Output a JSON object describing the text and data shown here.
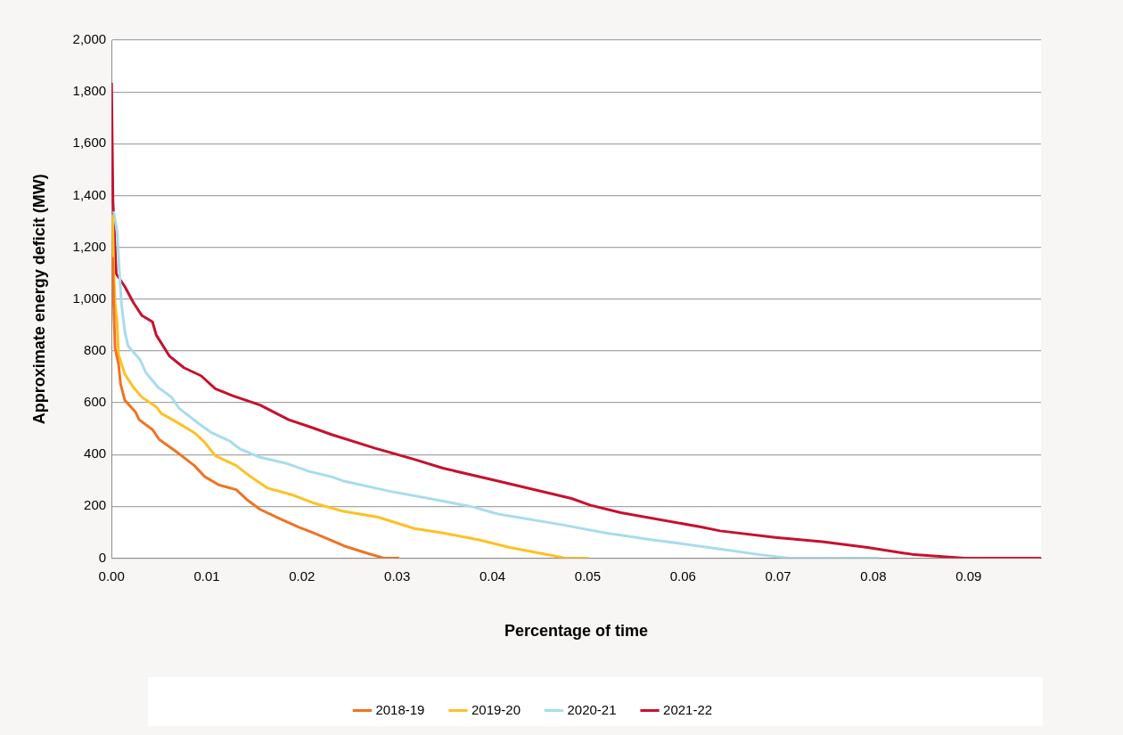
{
  "chart_data": {
    "type": "line",
    "xlabel": "Percentage of time",
    "ylabel": "Approximate energy deficit (MW)",
    "xlim": [
      0,
      0.0976
    ],
    "ylim": [
      0,
      2000
    ],
    "xticks": [
      {
        "value": 0,
        "label": "0.00"
      },
      0.01,
      0.02,
      0.03,
      0.04,
      0.05,
      0.06,
      0.07,
      0.08,
      0.09
    ],
    "yticks": [
      0,
      200,
      400,
      600,
      800,
      {
        "value": 1000,
        "label": "1,000"
      },
      {
        "value": 1200,
        "label": "1,200"
      },
      {
        "value": 1400,
        "label": "1,400"
      },
      {
        "value": 1600,
        "label": "1,600"
      },
      {
        "value": 1800,
        "label": "1,800"
      },
      {
        "value": 2000,
        "label": "2,000"
      }
    ],
    "grid": "y",
    "legend": "bottom",
    "marker": "none",
    "line_style": "solid",
    "series": [
      {
        "name": "2018-19",
        "color": "#f07323",
        "x": [
          0.00012,
          0.00022,
          0.00037,
          0.00074,
          0.00095,
          0.0014,
          0.0025,
          0.0029,
          0.0043,
          0.005,
          0.0069,
          0.0087,
          0.0098,
          0.0113,
          0.0131,
          0.0142,
          0.0156,
          0.0178,
          0.0197,
          0.0212,
          0.0231,
          0.0244,
          0.027,
          0.0286,
          0.0302
        ],
        "values": [
          1162,
          986,
          811,
          748,
          672,
          609,
          565,
          534,
          496,
          458,
          408,
          357,
          314,
          282,
          264,
          226,
          188,
          150,
          119,
          97,
          68,
          47,
          17,
          0,
          0
        ]
      },
      {
        "name": "2019-20",
        "color": "#ffc024",
        "x": [
          0.00012,
          0.00022,
          0.00037,
          0.00058,
          0.00074,
          0.0014,
          0.0023,
          0.0032,
          0.0047,
          0.0052,
          0.0067,
          0.0087,
          0.0098,
          0.0109,
          0.0131,
          0.0146,
          0.0164,
          0.0189,
          0.0211,
          0.0244,
          0.028,
          0.0318,
          0.0348,
          0.0386,
          0.0418,
          0.0471,
          0.0475,
          0.0501
        ],
        "values": [
          1326,
          1112,
          986,
          912,
          785,
          710,
          659,
          621,
          584,
          559,
          528,
          484,
          446,
          395,
          357,
          314,
          270,
          245,
          214,
          180,
          158,
          114,
          97,
          70,
          41,
          4,
          0,
          0
        ]
      },
      {
        "name": "2020-21",
        "color": "#a8dcec",
        "x": [
          0.00022,
          0.00058,
          0.00084,
          0.00103,
          0.0014,
          0.00175,
          0.003,
          0.0036,
          0.0049,
          0.0063,
          0.0071,
          0.0091,
          0.0105,
          0.0124,
          0.0135,
          0.0156,
          0.0185,
          0.0208,
          0.0231,
          0.0244,
          0.0292,
          0.0341,
          0.038,
          0.0406,
          0.0471,
          0.0519,
          0.0568,
          0.06,
          0.0649,
          0.0681,
          0.0712,
          0.0806
        ],
        "values": [
          1339,
          1262,
          1098,
          986,
          873,
          818,
          766,
          716,
          659,
          621,
          578,
          521,
          484,
          452,
          421,
          389,
          364,
          334,
          314,
          297,
          258,
          225,
          197,
          170,
          130,
          97,
          70,
          55,
          30,
          13,
          0,
          0
        ]
      },
      {
        "name": "2021-22",
        "color": "#c8102e",
        "x": [
          0,
          4e-05,
          0.00015,
          0.00022,
          0.00049,
          0.0014,
          0.0023,
          0.0032,
          0.0043,
          0.0047,
          0.0061,
          0.0076,
          0.0094,
          0.0109,
          0.0127,
          0.0156,
          0.0186,
          0.0208,
          0.0231,
          0.0276,
          0.0318,
          0.0348,
          0.0406,
          0.0483,
          0.0503,
          0.0535,
          0.0619,
          0.0639,
          0.0697,
          0.0746,
          0.0794,
          0.0843,
          0.0896,
          0.0976
        ],
        "values": [
          1835,
          1835,
          1376,
          1326,
          1098,
          1048,
          986,
          936,
          912,
          861,
          779,
          735,
          704,
          654,
          627,
          591,
          534,
          507,
          477,
          425,
          381,
          347,
          297,
          230,
          204,
          175,
          120,
          105,
          80,
          63,
          41,
          13,
          0,
          0
        ]
      }
    ]
  }
}
